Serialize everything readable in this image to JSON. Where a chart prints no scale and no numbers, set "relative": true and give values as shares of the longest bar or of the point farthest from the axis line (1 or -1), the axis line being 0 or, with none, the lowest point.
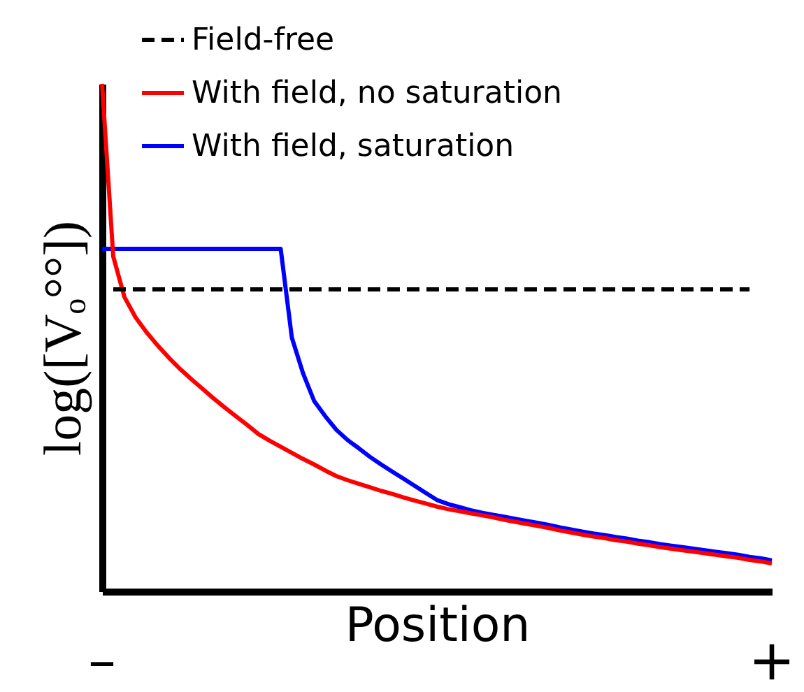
{
  "chart_data": {
    "type": "line",
    "relative": true,
    "xlabel": "Position",
    "ylabel": "log([Vₒ°°])",
    "annotations": [
      "–",
      "+"
    ],
    "legend": "top left",
    "marker": "none",
    "categories": [
      null,
      null,
      null,
      null,
      null,
      null,
      null,
      null,
      null,
      null,
      null,
      null,
      null,
      null,
      null,
      null,
      null,
      null,
      null,
      null,
      null,
      null,
      null,
      null,
      null,
      null,
      null,
      null,
      null,
      null,
      null,
      null,
      null,
      null,
      null,
      null,
      null,
      null,
      null,
      null,
      null,
      null,
      null,
      null,
      null,
      null,
      null,
      null,
      null,
      null,
      null,
      null,
      null,
      null,
      null,
      null,
      null,
      null,
      null,
      null,
      null
    ],
    "series": [
      {
        "name": "Field-free",
        "color": "#000000",
        "line_style": "dashed",
        "values": [
          null,
          0.595,
          0.595,
          0.595,
          0.595,
          0.595,
          0.595,
          0.595,
          0.595,
          0.595,
          0.595,
          0.595,
          0.595,
          0.595,
          0.595,
          0.595,
          0.595,
          0.595,
          0.595,
          0.595,
          0.595,
          0.595,
          0.595,
          0.595,
          0.595,
          0.595,
          0.595,
          0.595,
          0.595,
          0.595,
          0.595,
          0.595,
          0.595,
          0.595,
          0.595,
          0.595,
          0.595,
          0.595,
          0.595,
          0.595,
          0.595,
          0.595,
          0.595,
          0.595,
          0.595,
          0.595,
          0.595,
          0.595,
          0.595,
          0.595,
          0.595,
          0.595,
          0.595,
          0.595,
          0.595,
          0.595,
          0.595,
          0.595,
          0.595,
          null,
          null
        ]
      },
      {
        "name": "With field, no saturation",
        "color": "#ff0000",
        "line_style": "solid",
        "values": [
          1,
          0.66,
          0.58,
          0.54,
          0.51,
          0.484,
          0.46,
          0.438,
          0.418,
          0.399,
          0.38,
          0.362,
          0.345,
          0.328,
          0.31,
          0.297,
          0.285,
          0.273,
          0.261,
          0.25,
          0.238,
          0.227,
          0.219,
          0.212,
          0.205,
          0.198,
          0.192,
          0.185,
          0.179,
          0.173,
          0.167,
          0.162,
          0.158,
          0.154,
          0.15,
          0.146,
          0.141,
          0.137,
          0.133,
          0.129,
          0.125,
          0.12,
          0.116,
          0.112,
          0.108,
          0.105,
          0.101,
          0.098,
          0.094,
          0.091,
          0.087,
          0.084,
          0.081,
          0.078,
          0.075,
          0.072,
          0.069,
          0.066,
          0.062,
          0.059,
          0.055
        ]
      },
      {
        "name": "With field, saturation",
        "color": "#0000ff",
        "line_style": "solid",
        "values": [
          0.675,
          0.675,
          0.675,
          0.675,
          0.675,
          0.675,
          0.675,
          0.675,
          0.675,
          0.675,
          0.675,
          0.675,
          0.675,
          0.675,
          0.675,
          0.675,
          0.675,
          0.5,
          0.43,
          0.375,
          0.345,
          0.318,
          0.298,
          0.282,
          0.265,
          0.25,
          0.236,
          0.222,
          0.208,
          0.194,
          0.18,
          0.172,
          0.166,
          0.16,
          0.155,
          0.151,
          0.147,
          0.143,
          0.139,
          0.135,
          0.131,
          0.126,
          0.122,
          0.118,
          0.114,
          0.111,
          0.107,
          0.104,
          0.1,
          0.097,
          0.093,
          0.09,
          0.087,
          0.084,
          0.081,
          0.078,
          0.075,
          0.072,
          0.068,
          0.065,
          0.061
        ]
      }
    ]
  }
}
